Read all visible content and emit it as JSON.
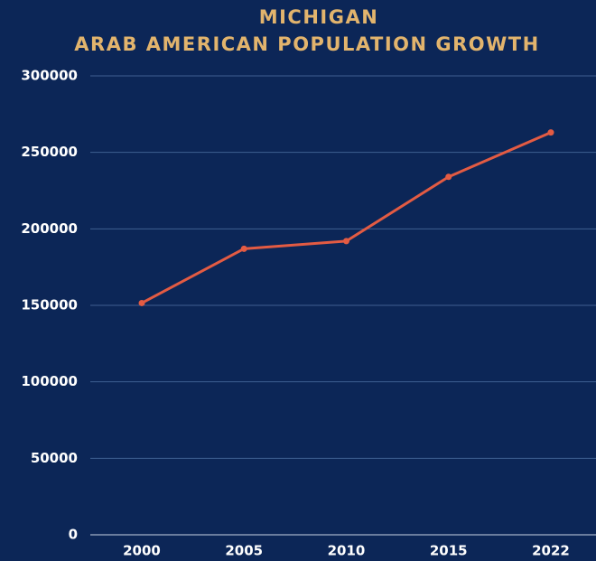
{
  "chart_data": {
    "type": "line",
    "title": "MICHIGAN",
    "subtitle": "ARAB AMERICAN POPULATION GROWTH",
    "categories": [
      "2000",
      "2005",
      "2010",
      "2015",
      "2022"
    ],
    "series": [
      {
        "name": "Arab American population",
        "color": "#e35b43",
        "values": [
          151500,
          187000,
          192000,
          234000,
          263000
        ]
      }
    ],
    "ylim": [
      0,
      300000
    ],
    "yticks": [
      0,
      50000,
      100000,
      150000,
      200000,
      250000,
      300000
    ],
    "grid": true
  }
}
